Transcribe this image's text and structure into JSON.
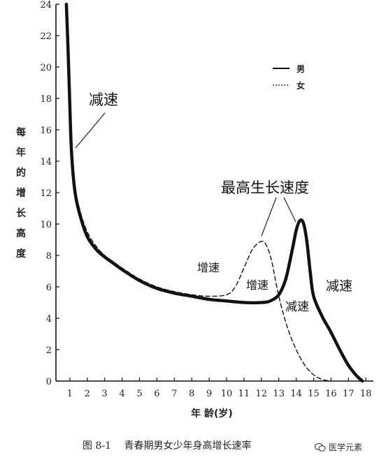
{
  "chart_data": {
    "type": "line",
    "title": "",
    "ylabel": "每年的增长高度",
    "xlabel": "年 龄(岁)",
    "xlim": [
      0,
      18
    ],
    "ylim": [
      0,
      24
    ],
    "x_ticks": [
      1,
      2,
      3,
      4,
      5,
      6,
      7,
      8,
      9,
      10,
      11,
      12,
      13,
      14,
      15,
      16,
      17,
      18
    ],
    "y_ticks": [
      0,
      2,
      4,
      6,
      8,
      10,
      12,
      14,
      16,
      18,
      20,
      22,
      24
    ],
    "grid": false,
    "legend_position": "top-right",
    "series": [
      {
        "name": "男",
        "style": "solid",
        "x": [
          0.8,
          0.9,
          1.0,
          1.1,
          1.3,
          1.6,
          2.0,
          2.5,
          3.0,
          3.5,
          4.0,
          5.0,
          6.0,
          7.0,
          8.0,
          9.0,
          10.0,
          11.0,
          12.0,
          12.5,
          13.0,
          13.4,
          13.8,
          14.0,
          14.2,
          14.4,
          14.6,
          14.8,
          15.0,
          15.5,
          16.0,
          16.5,
          17.0,
          17.5,
          17.8
        ],
        "values": [
          24.0,
          21.0,
          17.5,
          14.5,
          12.0,
          10.5,
          9.2,
          8.4,
          7.9,
          7.5,
          7.1,
          6.4,
          5.9,
          5.6,
          5.4,
          5.2,
          5.1,
          5.0,
          5.0,
          5.1,
          5.5,
          6.5,
          8.5,
          9.6,
          10.2,
          10.1,
          9.0,
          7.0,
          5.4,
          4.1,
          3.1,
          2.0,
          1.0,
          0.3,
          0.0
        ]
      },
      {
        "name": "女",
        "style": "dashed",
        "x": [
          0.8,
          0.9,
          1.0,
          1.1,
          1.3,
          1.6,
          2.0,
          2.5,
          3.0,
          3.5,
          4.0,
          5.0,
          6.0,
          7.0,
          8.0,
          9.0,
          10.0,
          10.5,
          11.0,
          11.5,
          12.0,
          12.3,
          12.6,
          13.0,
          13.5,
          14.0,
          14.5,
          15.0,
          15.5,
          16.0
        ],
        "values": [
          24.0,
          21.5,
          18.0,
          15.0,
          12.4,
          10.8,
          9.5,
          8.6,
          8.0,
          7.6,
          7.2,
          6.5,
          6.0,
          5.7,
          5.5,
          5.4,
          5.5,
          6.0,
          7.2,
          8.4,
          8.9,
          8.6,
          7.6,
          5.4,
          3.4,
          2.0,
          1.0,
          0.4,
          0.1,
          0.0
        ]
      }
    ],
    "annotations": [
      {
        "id": "decel_1",
        "text": "减速"
      },
      {
        "id": "peak",
        "text": "最高生长速度"
      },
      {
        "id": "accel_1",
        "text": "增速"
      },
      {
        "id": "accel_2",
        "text": "增速"
      },
      {
        "id": "decel_2",
        "text": "减速"
      },
      {
        "id": "decel_3",
        "text": "减速"
      }
    ]
  },
  "legend": {
    "male_label": "男",
    "female_label": "女"
  },
  "caption": {
    "number": "图 8-1",
    "title": "青春期男女少年身高增长速率"
  },
  "watermark": {
    "text": "医学元素"
  }
}
